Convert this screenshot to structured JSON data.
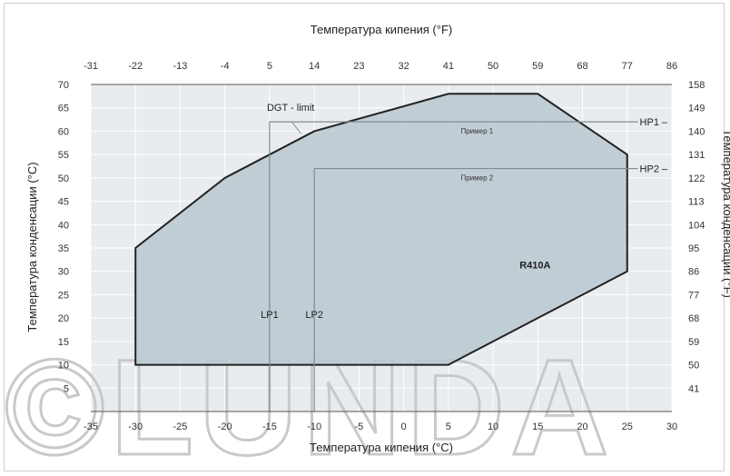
{
  "chart_data": {
    "type": "area",
    "title": "",
    "xlabel": "Температура кипения (°C)",
    "xlabel_top": "Температура кипения (°F)",
    "ylabel": "Температура конденсации (°C)",
    "ylabel_right": "Температура конденсации (°F)",
    "xlim": [
      -35,
      30
    ],
    "ylim": [
      0,
      70
    ],
    "grid": true,
    "x_ticks": [
      "-35",
      "-30",
      "-25",
      "-20",
      "-15",
      "-10",
      "-5",
      "0",
      "5",
      "10",
      "15",
      "20",
      "25",
      "30"
    ],
    "x_ticks_top": [
      "-31",
      "-22",
      "-13",
      "-4",
      "5",
      "14",
      "23",
      "32",
      "41",
      "50",
      "59",
      "68",
      "77",
      "86"
    ],
    "y_ticks": [
      "5",
      "10",
      "15",
      "20",
      "25",
      "30",
      "35",
      "40",
      "45",
      "50",
      "55",
      "60",
      "65",
      "70"
    ],
    "y_ticks_right": [
      "41",
      "50",
      "59",
      "68",
      "77",
      "86",
      "95",
      "104",
      "113",
      "122",
      "131",
      "140",
      "149",
      "158"
    ],
    "envelope": {
      "name": "R410A",
      "points": [
        [
          -30,
          10
        ],
        [
          5,
          10
        ],
        [
          15,
          20
        ],
        [
          25,
          30
        ],
        [
          25,
          55
        ],
        [
          15,
          68
        ],
        [
          5,
          68
        ],
        [
          -10,
          60
        ],
        [
          -20,
          50
        ],
        [
          -30,
          35
        ]
      ]
    },
    "dgt_limit": {
      "label": "DGT - limit",
      "points": [
        [
          -15,
          62
        ],
        [
          -15,
          62
        ]
      ]
    },
    "examples": [
      {
        "lp_label": "LP1",
        "hp_label": "HP1",
        "example_label": "Пример 1",
        "evap_c": -15,
        "cond_c": 62
      },
      {
        "lp_label": "LP2",
        "hp_label": "HP2",
        "example_label": "Пример 2",
        "evap_c": -10,
        "cond_c": 52
      }
    ]
  },
  "watermark": "©LUNDA",
  "colors": {
    "envelope_fill": "#b9c8d0",
    "plot_bg": "#e8ecef",
    "grid": "#ffffff",
    "outline": "#222222",
    "example_line": "#7f8c92"
  }
}
